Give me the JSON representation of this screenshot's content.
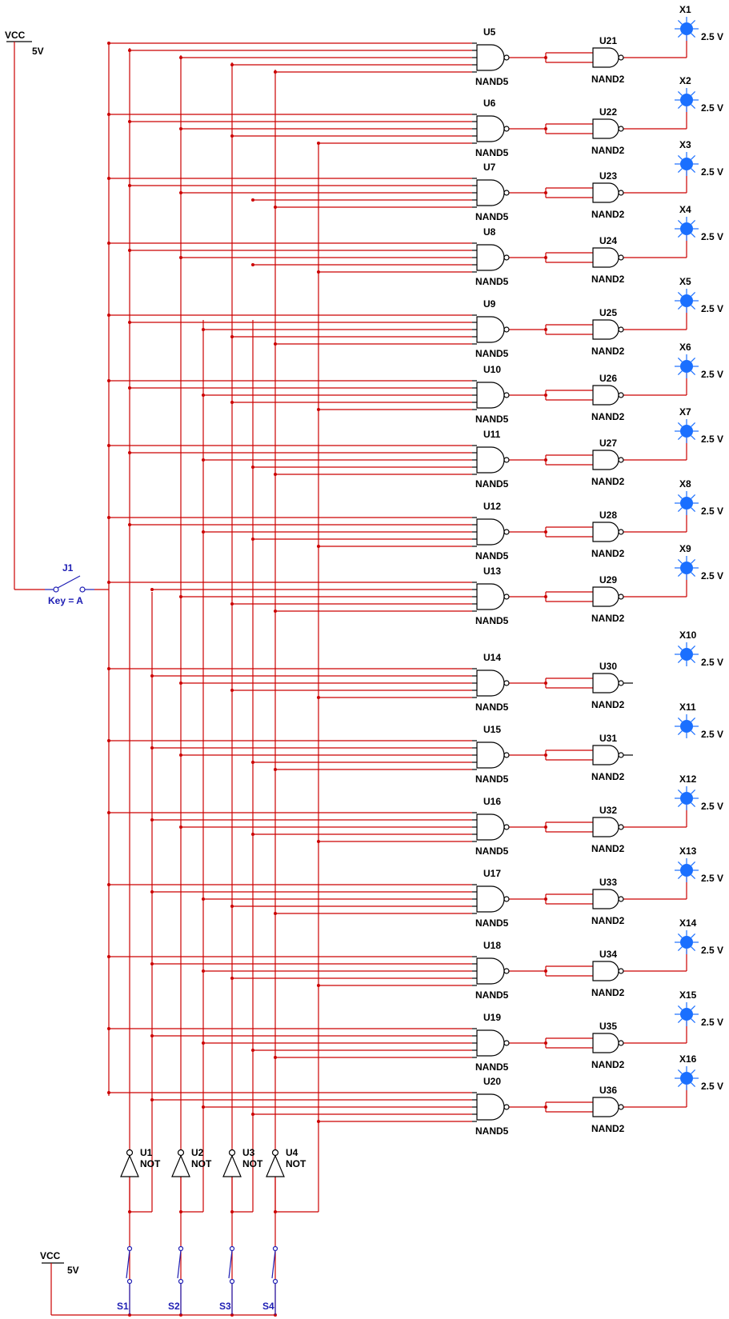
{
  "supply_top": {
    "name": "VCC",
    "voltage": "5V"
  },
  "supply_bottom": {
    "name": "VCC",
    "voltage": "5V"
  },
  "master_switch": {
    "name": "J1",
    "key": "Key = A"
  },
  "input_switches": [
    "S1",
    "S2",
    "S3",
    "S4"
  ],
  "inverters": [
    {
      "ref": "U1",
      "type": "NOT"
    },
    {
      "ref": "U2",
      "type": "NOT"
    },
    {
      "ref": "U3",
      "type": "NOT"
    },
    {
      "ref": "U4",
      "type": "NOT"
    }
  ],
  "stages": [
    {
      "nand5": "U5",
      "nand2": "U21",
      "probe": "X1",
      "probe_value": "2.5 V",
      "type5": "NAND5",
      "type2": "NAND2",
      "has_probe": true
    },
    {
      "nand5": "U6",
      "nand2": "U22",
      "probe": "X2",
      "probe_value": "2.5 V",
      "type5": "NAND5",
      "type2": "NAND2",
      "has_probe": true
    },
    {
      "nand5": "U7",
      "nand2": "U23",
      "probe": "X3",
      "probe_value": "2.5 V",
      "type5": "NAND5",
      "type2": "NAND2",
      "has_probe": true
    },
    {
      "nand5": "U8",
      "nand2": "U24",
      "probe": "X4",
      "probe_value": "2.5 V",
      "type5": "NAND5",
      "type2": "NAND2",
      "has_probe": true
    },
    {
      "nand5": "U9",
      "nand2": "U25",
      "probe": "X5",
      "probe_value": "2.5 V",
      "type5": "NAND5",
      "type2": "NAND2",
      "has_probe": true
    },
    {
      "nand5": "U10",
      "nand2": "U26",
      "probe": "X6",
      "probe_value": "2.5 V",
      "type5": "NAND5",
      "type2": "NAND2",
      "has_probe": true
    },
    {
      "nand5": "U11",
      "nand2": "U27",
      "probe": "X7",
      "probe_value": "2.5 V",
      "type5": "NAND5",
      "type2": "NAND2",
      "has_probe": true
    },
    {
      "nand5": "U12",
      "nand2": "U28",
      "probe": "X8",
      "probe_value": "2.5 V",
      "type5": "NAND5",
      "type2": "NAND2",
      "has_probe": true
    },
    {
      "nand5": "U13",
      "nand2": "U29",
      "probe": "X9",
      "probe_value": "2.5 V",
      "type5": "NAND5",
      "type2": "NAND2",
      "has_probe": true
    },
    {
      "nand5": "U14",
      "nand2": "U30",
      "probe": "X10",
      "probe_value": "2.5 V",
      "type5": "NAND5",
      "type2": "NAND2",
      "has_probe": false
    },
    {
      "nand5": "U15",
      "nand2": "U31",
      "probe": "X11",
      "probe_value": "2.5 V",
      "type5": "NAND5",
      "type2": "NAND2",
      "has_probe": false
    },
    {
      "nand5": "U16",
      "nand2": "U32",
      "probe": "X12",
      "probe_value": "2.5 V",
      "type5": "NAND5",
      "type2": "NAND2",
      "has_probe": true
    },
    {
      "nand5": "U17",
      "nand2": "U33",
      "probe": "X13",
      "probe_value": "2.5 V",
      "type5": "NAND5",
      "type2": "NAND2",
      "has_probe": true
    },
    {
      "nand5": "U18",
      "nand2": "U34",
      "probe": "X14",
      "probe_value": "2.5 V",
      "type5": "NAND5",
      "type2": "NAND2",
      "has_probe": true
    },
    {
      "nand5": "U19",
      "nand2": "U35",
      "probe": "X15",
      "probe_value": "2.5 V",
      "type5": "NAND5",
      "type2": "NAND2",
      "has_probe": true
    },
    {
      "nand5": "U20",
      "nand2": "U36",
      "probe": "X16",
      "probe_value": "2.5 V",
      "type5": "NAND5",
      "type2": "NAND2",
      "has_probe": true
    }
  ],
  "colors": {
    "wire": "#cc0000",
    "probe": "#1a6fff",
    "switch": "#1e1eb4",
    "gate": "#000000"
  }
}
